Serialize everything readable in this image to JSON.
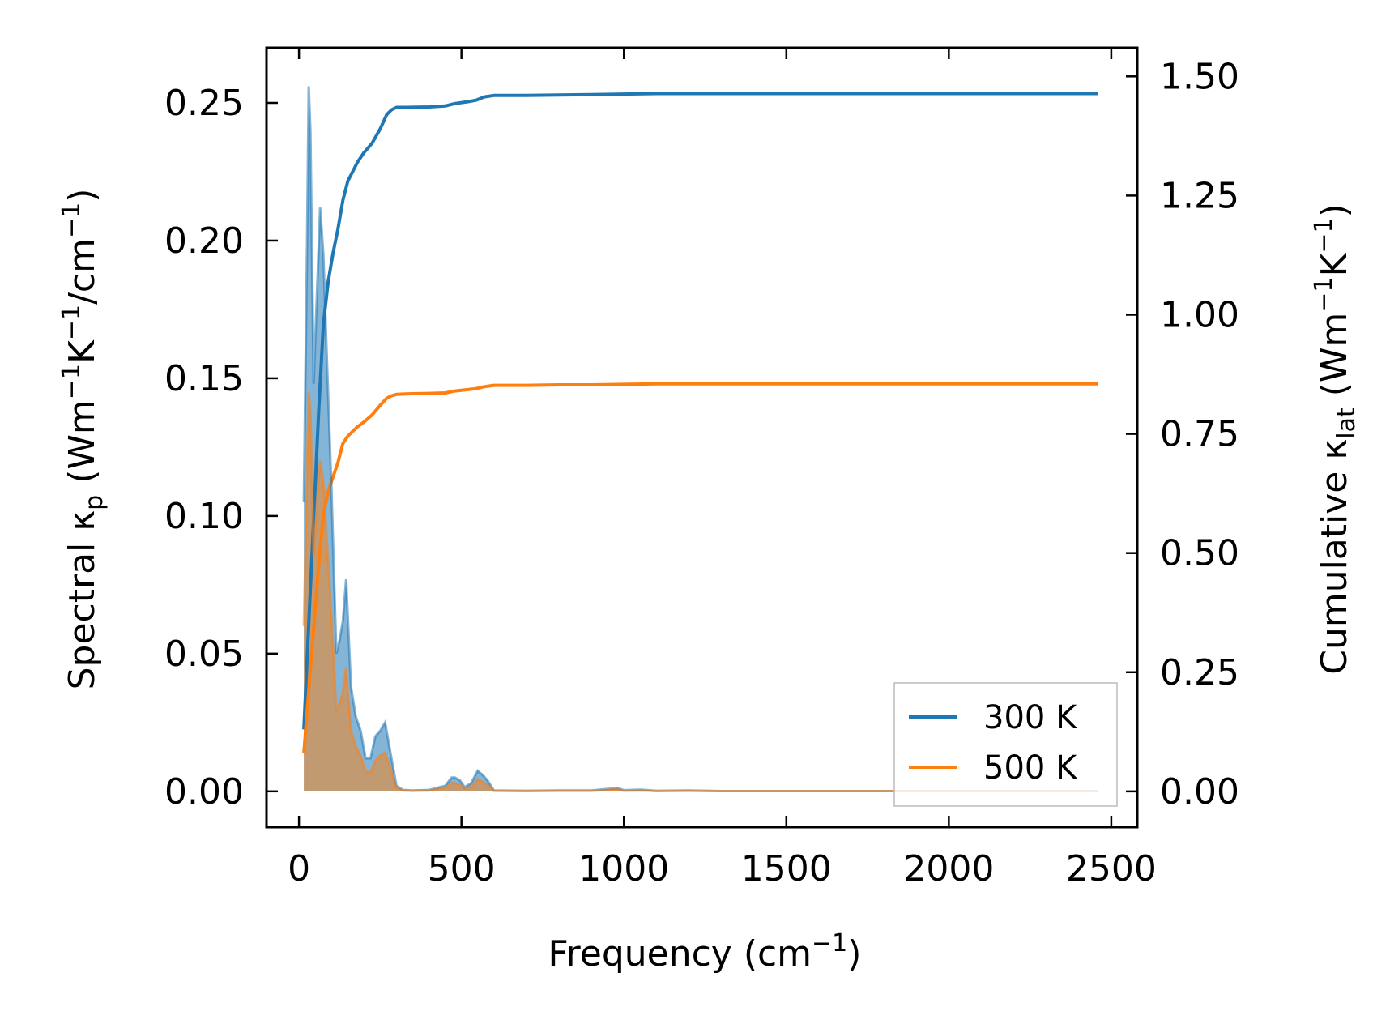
{
  "colors": {
    "series_300K": "#1f77b4",
    "series_500K": "#ff7f0e",
    "fill_300K": "#1f77b4",
    "fill_500K": "#ff7f0e"
  },
  "chart_data": {
    "type": "line",
    "xlabel": {
      "prefix": "Frequency (cm",
      "sup": "−1",
      "suffix": ")"
    },
    "ylabel_left": {
      "prefix": "Spectral κ",
      "sub": "p",
      "middle": " (Wm",
      "sup1": "−1",
      "k": "K",
      "sup2": "−1",
      "suffix_pre": "/cm",
      "sup3": "−1",
      "suffix": ")"
    },
    "ylabel_right": {
      "prefix": "Cumulative κ",
      "sub": "lat",
      "middle": " (Wm",
      "sup1": "−1",
      "k": "K",
      "sup2": "−1",
      "suffix": ")"
    },
    "xlim": [
      -100,
      2580
    ],
    "ylim_left": [
      -0.013,
      0.27
    ],
    "ylim_right": [
      -0.075,
      1.56
    ],
    "xticks": [
      0,
      500,
      1000,
      1500,
      2000,
      2500
    ],
    "xtick_labels": [
      "0",
      "500",
      "1000",
      "1500",
      "2000",
      "2500"
    ],
    "yticks_left": [
      0.0,
      0.05,
      0.1,
      0.15,
      0.2,
      0.25
    ],
    "ytick_labels_left": [
      "0.00",
      "0.05",
      "0.10",
      "0.15",
      "0.20",
      "0.25"
    ],
    "yticks_right": [
      0.0,
      0.25,
      0.5,
      0.75,
      1.0,
      1.25,
      1.5
    ],
    "ytick_labels_right": [
      "0.00",
      "0.25",
      "0.50",
      "0.75",
      "1.00",
      "1.25",
      "1.50"
    ],
    "legend": {
      "placement": "lower-right",
      "entries": [
        "300 K",
        "500 K"
      ]
    },
    "grid": false,
    "spectral_series": [
      {
        "name": "300 K",
        "x": [
          15,
          25,
          30,
          35,
          45,
          55,
          65,
          75,
          85,
          100,
          115,
          125,
          135,
          145,
          160,
          175,
          190,
          205,
          220,
          235,
          250,
          265,
          280,
          300,
          320,
          350,
          400,
          450,
          470,
          480,
          495,
          510,
          530,
          550,
          565,
          580,
          600,
          700,
          800,
          900,
          980,
          1000,
          1050,
          1100,
          1200,
          1300,
          1500,
          2000,
          2460
        ],
        "y": [
          0.105,
          0.2,
          0.256,
          0.24,
          0.148,
          0.18,
          0.212,
          0.195,
          0.16,
          0.11,
          0.05,
          0.055,
          0.062,
          0.077,
          0.038,
          0.027,
          0.022,
          0.012,
          0.012,
          0.02,
          0.022,
          0.025,
          0.015,
          0.002,
          0.0005,
          0.0003,
          0.0005,
          0.002,
          0.005,
          0.005,
          0.004,
          0.0015,
          0.003,
          0.0075,
          0.006,
          0.004,
          0.0003,
          0.0002,
          0.0003,
          0.0003,
          0.0012,
          0.0004,
          0.0006,
          0.0002,
          0.0003,
          0.0001,
          0.0001,
          0.0001,
          0.0001
        ]
      },
      {
        "name": "500 K",
        "x": [
          15,
          25,
          30,
          35,
          45,
          55,
          65,
          75,
          85,
          100,
          115,
          125,
          135,
          145,
          160,
          175,
          190,
          205,
          220,
          235,
          250,
          265,
          280,
          300,
          320,
          350,
          400,
          450,
          470,
          480,
          495,
          510,
          530,
          550,
          565,
          580,
          600,
          700,
          800,
          900,
          980,
          1000,
          1050,
          1100,
          1200,
          1300,
          1500,
          2000,
          2460
        ],
        "y": [
          0.06,
          0.115,
          0.145,
          0.138,
          0.085,
          0.104,
          0.12,
          0.112,
          0.092,
          0.063,
          0.029,
          0.032,
          0.036,
          0.045,
          0.022,
          0.016,
          0.013,
          0.007,
          0.007,
          0.011,
          0.013,
          0.014,
          0.009,
          0.0012,
          0.0003,
          0.0002,
          0.0003,
          0.0012,
          0.003,
          0.003,
          0.0023,
          0.0009,
          0.0017,
          0.0044,
          0.0035,
          0.0023,
          0.0002,
          0.0001,
          0.0002,
          0.0002,
          0.0007,
          0.0002,
          0.0003,
          0.0001,
          0.0002,
          0.0001,
          0.0001,
          0.0001,
          0.0001
        ]
      }
    ],
    "cumulative_series": [
      {
        "name": "300 K",
        "x": [
          15,
          30,
          45,
          60,
          75,
          90,
          105,
          120,
          135,
          150,
          165,
          180,
          200,
          225,
          250,
          270,
          285,
          300,
          330,
          400,
          450,
          480,
          520,
          545,
          570,
          600,
          700,
          800,
          900,
          1000,
          1100,
          1200,
          1500,
          2000,
          2460
        ],
        "y": [
          0.13,
          0.35,
          0.57,
          0.79,
          0.98,
          1.07,
          1.13,
          1.18,
          1.24,
          1.28,
          1.3,
          1.32,
          1.34,
          1.36,
          1.39,
          1.42,
          1.43,
          1.435,
          1.435,
          1.436,
          1.438,
          1.443,
          1.447,
          1.45,
          1.457,
          1.46,
          1.46,
          1.461,
          1.462,
          1.463,
          1.464,
          1.464,
          1.464,
          1.464,
          1.464
        ]
      },
      {
        "name": "500 K",
        "x": [
          15,
          30,
          45,
          60,
          75,
          90,
          105,
          120,
          135,
          150,
          165,
          180,
          200,
          225,
          250,
          270,
          285,
          300,
          330,
          400,
          450,
          480,
          520,
          545,
          570,
          600,
          700,
          800,
          900,
          1000,
          1100,
          1200,
          1500,
          2000,
          2460
        ],
        "y": [
          0.08,
          0.21,
          0.34,
          0.47,
          0.58,
          0.63,
          0.66,
          0.69,
          0.73,
          0.745,
          0.755,
          0.765,
          0.775,
          0.79,
          0.81,
          0.825,
          0.83,
          0.833,
          0.834,
          0.835,
          0.836,
          0.84,
          0.843,
          0.845,
          0.849,
          0.852,
          0.852,
          0.853,
          0.853,
          0.854,
          0.855,
          0.855,
          0.855,
          0.855,
          0.855
        ]
      }
    ]
  }
}
